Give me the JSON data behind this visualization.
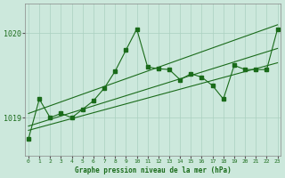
{
  "bg_color": "#cce8dc",
  "grid_color": "#aad0c0",
  "line_color": "#1a6b1a",
  "title": "Graphe pression niveau de la mer (hPa)",
  "xlim": [
    -0.3,
    23.3
  ],
  "ylim": [
    1018.55,
    1020.35
  ],
  "yticks": [
    1019,
    1020
  ],
  "xticks": [
    0,
    1,
    2,
    3,
    4,
    5,
    6,
    7,
    8,
    9,
    10,
    11,
    12,
    13,
    14,
    15,
    16,
    17,
    18,
    19,
    20,
    21,
    22,
    23
  ],
  "series": {
    "main": {
      "x": [
        0,
        1,
        2,
        3,
        4,
        5,
        6,
        7,
        8,
        9,
        10,
        11,
        12,
        13,
        14,
        15,
        16,
        17,
        18,
        19,
        20,
        21,
        22,
        23
      ],
      "y": [
        1018.75,
        1019.22,
        1019.0,
        1019.05,
        1019.0,
        1019.1,
        1019.2,
        1019.35,
        1019.55,
        1019.8,
        1020.05,
        1019.6,
        1019.58,
        1019.57,
        1019.45,
        1019.52,
        1019.48,
        1019.38,
        1019.22,
        1019.62,
        1019.57,
        1019.57,
        1019.57,
        1020.05
      ]
    },
    "line2": {
      "x": [
        0,
        2,
        3,
        4,
        5,
        6,
        7,
        8,
        9,
        10,
        11,
        12,
        13,
        14,
        15,
        16,
        17,
        19,
        20,
        21,
        22,
        23
      ],
      "y": [
        1018.75,
        1019.0,
        1019.05,
        1019.0,
        1019.1,
        1019.2,
        1019.35,
        1019.55,
        1019.8,
        1020.05,
        1019.6,
        1019.58,
        1019.57,
        1019.45,
        1019.52,
        1019.48,
        1019.38,
        1019.62,
        1019.57,
        1019.57,
        1019.57,
        1020.05
      ]
    },
    "upper": {
      "x": [
        0,
        23
      ],
      "y": [
        1019.05,
        1020.1
      ]
    },
    "lower": {
      "x": [
        0,
        23
      ],
      "y": [
        1018.85,
        1019.65
      ]
    },
    "mid": {
      "x": [
        0,
        23
      ],
      "y": [
        1018.9,
        1019.82
      ]
    }
  }
}
